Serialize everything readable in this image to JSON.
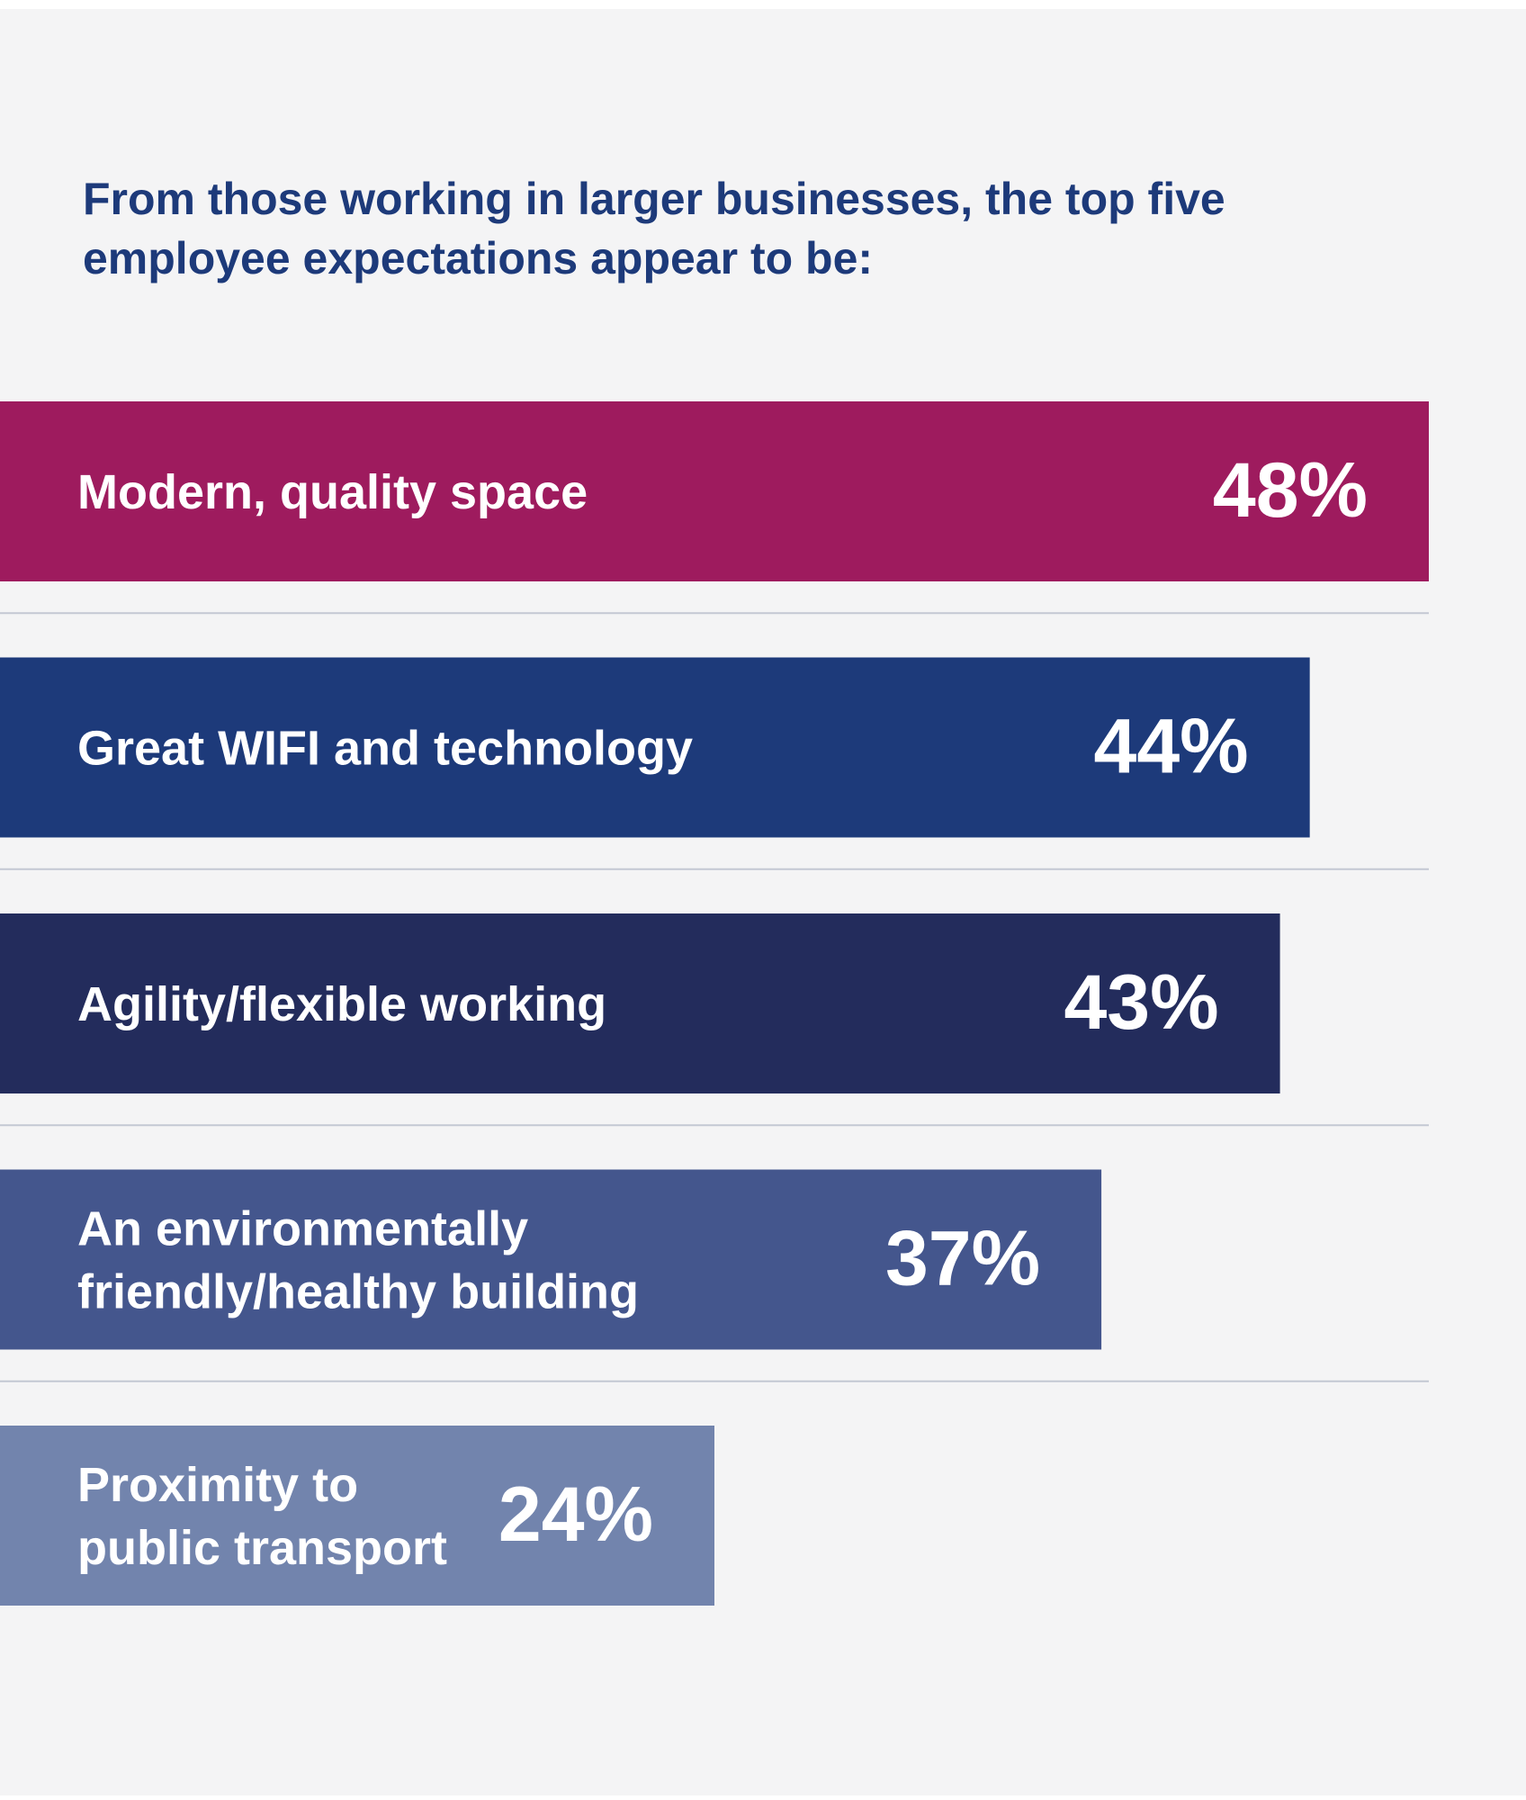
{
  "chart_data": {
    "type": "bar",
    "orientation": "horizontal",
    "title": "From those working in larger businesses, the top five employee expectations appear to be:",
    "categories": [
      [
        "Modern, quality space"
      ],
      [
        "Great WIFI and technology"
      ],
      [
        "Agility/flexible working"
      ],
      [
        "An environmentally",
        "friendly/healthy building"
      ],
      [
        "Proximity to",
        "public transport"
      ]
    ],
    "values": [
      48,
      44,
      43,
      37,
      24
    ],
    "value_labels": [
      "48%",
      "44%",
      "43%",
      "37%",
      "24%"
    ],
    "colors": [
      "#9e1b5e",
      "#1d3a7a",
      "#232c5c",
      "#44568d",
      "#7284ad"
    ],
    "separator_color": "#c3c8d3",
    "xlabel": "",
    "ylabel": "",
    "legend": "none",
    "grid": false
  }
}
